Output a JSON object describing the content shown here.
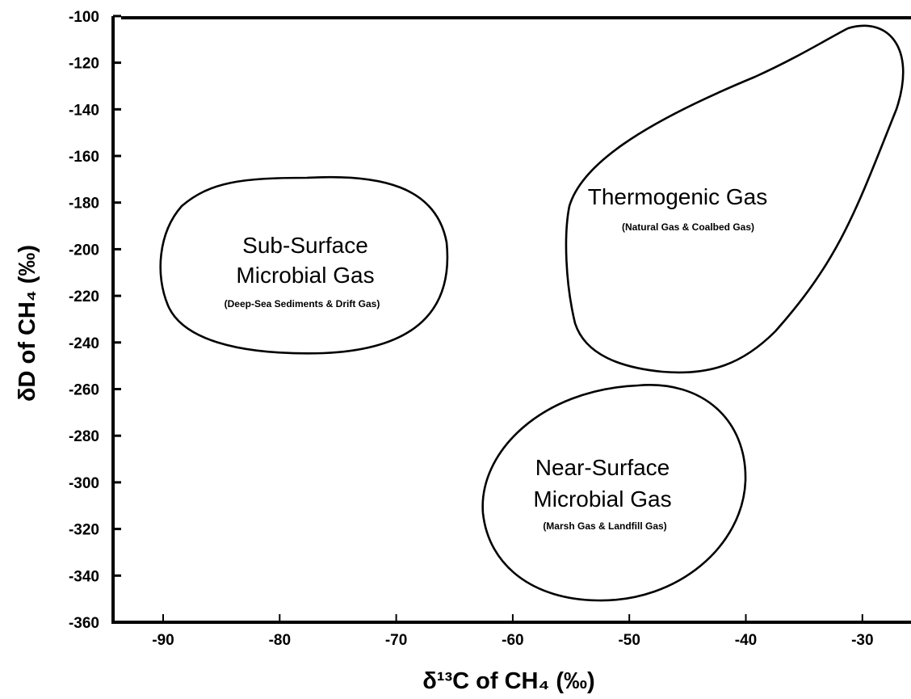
{
  "chart_data": {
    "type": "scatter",
    "xlabel": "δ¹³C of CH₄ (‰)",
    "ylabel": "δD of CH₄ (‰)",
    "xlim": [
      -95,
      -27
    ],
    "ylim": [
      -360,
      -100
    ],
    "x_ticks": [
      -90,
      -80,
      -70,
      -60,
      -50,
      -40,
      -30
    ],
    "y_ticks": [
      -100,
      -120,
      -140,
      -160,
      -180,
      -200,
      -220,
      -240,
      -260,
      -280,
      -300,
      -320,
      -340,
      -360
    ],
    "grid": false,
    "legend": "none",
    "regions": [
      {
        "id": "subsurface",
        "label_lines": [
          "Sub-Surface",
          "Microbial Gas"
        ],
        "sublabel": "(Deep-Sea Sediments & Drift Gas)",
        "x_range": [
          -90,
          -60
        ],
        "y_range": [
          -245,
          -170
        ]
      },
      {
        "id": "thermogenic",
        "label_lines": [
          "Thermogenic Gas"
        ],
        "sublabel": "(Natural Gas & Coalbed Gas)",
        "x_range": [
          -55,
          -29
        ],
        "y_range": [
          -255,
          -105
        ]
      },
      {
        "id": "nearsurface",
        "label_lines": [
          "Near-Surface",
          "Microbial Gas"
        ],
        "sublabel": "(Marsh Gas & Landfill Gas)",
        "x_range": [
          -62,
          -35
        ],
        "y_range": [
          -350,
          -260
        ]
      }
    ]
  }
}
